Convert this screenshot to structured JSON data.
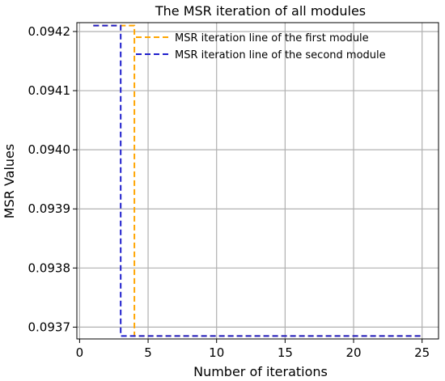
{
  "chart_data": {
    "type": "line",
    "title": "The MSR iteration of all modules",
    "xlabel": "Number of iterations",
    "ylabel": "MSR Values",
    "xlim": [
      -0.2,
      26.2
    ],
    "ylim": [
      0.09368,
      0.094215
    ],
    "xticks": [
      0,
      5,
      10,
      15,
      20,
      25
    ],
    "xtick_labels": [
      "0",
      "5",
      "10",
      "15",
      "20",
      "25"
    ],
    "yticks": [
      0.0937,
      0.0938,
      0.0939,
      0.094,
      0.0941,
      0.0942
    ],
    "ytick_labels": [
      "0.0937",
      "0.0938",
      "0.0939",
      "0.0940",
      "0.0941",
      "0.0942"
    ],
    "grid": true,
    "legend_position": "top-right",
    "series": [
      {
        "name": "MSR iteration line of the first module",
        "color": "#FFA500",
        "style": "dashed",
        "x": [
          1,
          2,
          3,
          4,
          5,
          6,
          7,
          8,
          9,
          10,
          11,
          12,
          13,
          14,
          15,
          16,
          17,
          18,
          19,
          20,
          21,
          22,
          23,
          24,
          25
        ],
        "y": [
          0.09421,
          0.09421,
          0.09421,
          0.093685,
          0.093685,
          0.093685,
          0.093685,
          0.093685,
          0.093685,
          0.093685,
          0.093685,
          0.093685,
          0.093685,
          0.093685,
          0.093685,
          0.093685,
          0.093685,
          0.093685,
          0.093685,
          0.093685,
          0.093685,
          0.093685,
          0.093685,
          0.093685,
          0.093685
        ]
      },
      {
        "name": "MSR iteration line of the second module",
        "color": "#1f1fcc",
        "style": "dashed",
        "x": [
          1,
          2,
          3,
          4,
          5,
          6,
          7,
          8,
          9,
          10,
          11,
          12,
          13,
          14,
          15,
          16,
          17,
          18,
          19,
          20,
          21,
          22,
          23,
          24,
          25
        ],
        "y": [
          0.09421,
          0.09421,
          0.093685,
          0.093685,
          0.093685,
          0.093685,
          0.093685,
          0.093685,
          0.093685,
          0.093685,
          0.093685,
          0.093685,
          0.093685,
          0.093685,
          0.093685,
          0.093685,
          0.093685,
          0.093685,
          0.093685,
          0.093685,
          0.093685,
          0.093685,
          0.093685,
          0.093685,
          0.093685
        ]
      }
    ]
  }
}
